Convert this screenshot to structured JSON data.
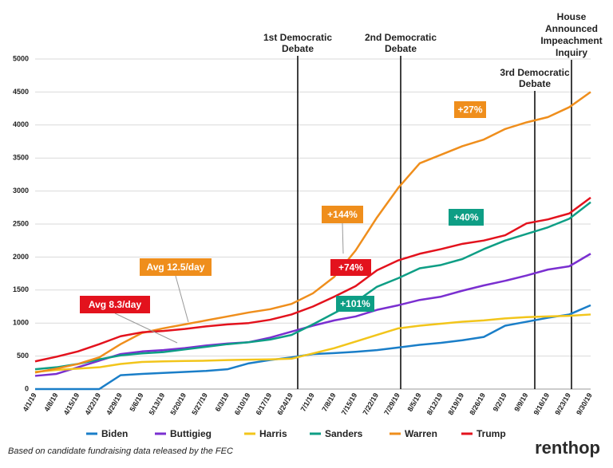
{
  "chart_data": {
    "type": "line",
    "categories": [
      "4/1/19",
      "4/8/19",
      "4/15/19",
      "4/22/19",
      "4/29/19",
      "5/6/19",
      "5/13/19",
      "5/20/19",
      "5/27/19",
      "6/3/19",
      "6/10/19",
      "6/17/19",
      "6/24/19",
      "7/1/19",
      "7/8/19",
      "7/15/19",
      "7/22/19",
      "7/29/19",
      "8/5/19",
      "8/12/19",
      "8/19/19",
      "8/26/19",
      "9/2/19",
      "9/9/19",
      "9/16/19",
      "9/23/19",
      "9/30/19"
    ],
    "series": [
      {
        "name": "Biden",
        "color": "#1a7ec8",
        "values": [
          0,
          0,
          0,
          0,
          210,
          230,
          245,
          260,
          275,
          300,
          390,
          440,
          480,
          530,
          545,
          565,
          590,
          630,
          670,
          700,
          740,
          790,
          960,
          1020,
          1080,
          1130,
          1270
        ]
      },
      {
        "name": "Buttigieg",
        "color": "#7a2fd0",
        "values": [
          200,
          230,
          330,
          430,
          530,
          570,
          590,
          620,
          660,
          690,
          710,
          780,
          870,
          960,
          1040,
          1100,
          1200,
          1270,
          1350,
          1400,
          1490,
          1570,
          1640,
          1720,
          1810,
          1860,
          2050
        ]
      },
      {
        "name": "Harris",
        "color": "#f2c51b",
        "values": [
          260,
          290,
          310,
          330,
          380,
          410,
          420,
          425,
          430,
          440,
          445,
          450,
          460,
          540,
          620,
          720,
          820,
          920,
          960,
          990,
          1020,
          1040,
          1070,
          1090,
          1100,
          1110,
          1130
        ]
      },
      {
        "name": "Sanders",
        "color": "#0e9e85",
        "values": [
          300,
          330,
          380,
          450,
          510,
          540,
          560,
          600,
          640,
          680,
          710,
          750,
          820,
          980,
          1150,
          1320,
          1550,
          1680,
          1830,
          1880,
          1970,
          2120,
          2250,
          2350,
          2450,
          2580,
          2830
        ]
      },
      {
        "name": "Warren",
        "color": "#ef8e1c",
        "values": [
          250,
          310,
          380,
          480,
          680,
          850,
          920,
          980,
          1040,
          1100,
          1160,
          1210,
          1290,
          1450,
          1700,
          2100,
          2600,
          3050,
          3420,
          3550,
          3680,
          3780,
          3940,
          4040,
          4120,
          4270,
          4500
        ]
      },
      {
        "name": "Trump",
        "color": "#e3121d",
        "values": [
          420,
          490,
          570,
          680,
          800,
          860,
          880,
          910,
          950,
          980,
          1000,
          1050,
          1130,
          1250,
          1400,
          1560,
          1800,
          1950,
          2050,
          2120,
          2200,
          2250,
          2330,
          2510,
          2570,
          2660,
          2900
        ]
      }
    ],
    "ylim": [
      0,
      5000
    ],
    "yticks": [
      0,
      500,
      1000,
      1500,
      2000,
      2500,
      3000,
      3500,
      4000,
      4500,
      5000
    ],
    "annotations": [
      {
        "lines": [
          "1st Democratic",
          "Debate"
        ]
      },
      {
        "lines": [
          "2nd Democratic",
          "Debate"
        ]
      },
      {
        "lines": [
          "3rd Democratic",
          "Debate"
        ]
      },
      {
        "lines": [
          "House",
          "Announced",
          "Impeachment",
          "Inquiry"
        ]
      }
    ],
    "callouts": [
      {
        "text": "+144%",
        "color": "#ef8e1c"
      },
      {
        "text": "+101%",
        "color": "#0e9e85"
      },
      {
        "text": "+74%",
        "color": "#e3121d"
      },
      {
        "text": "+27%",
        "color": "#ef8e1c"
      },
      {
        "text": "+40%",
        "color": "#0e9e85"
      },
      {
        "text": "Avg 12.5/day",
        "color": "#ef8e1c"
      },
      {
        "text": "Avg 8.3/day",
        "color": "#e3121d"
      }
    ],
    "footnote": "Based on candidate fundraising data released by the FEC",
    "logo": "renthop"
  }
}
